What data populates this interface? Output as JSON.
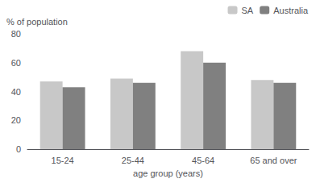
{
  "chart_data": {
    "type": "bar",
    "categories": [
      "15-24",
      "25-44",
      "45-64",
      "65 and over"
    ],
    "series": [
      {
        "name": "SA",
        "color": "#c8c8c8",
        "values": [
          47,
          49,
          68,
          48
        ]
      },
      {
        "name": "Australia",
        "color": "#808080",
        "values": [
          43,
          46,
          60,
          46
        ]
      }
    ],
    "x_label": "age group (years)",
    "y_label": "% of population",
    "ylim": [
      0,
      80
    ],
    "yticks": [
      0,
      20,
      40,
      60,
      80
    ],
    "grid": false,
    "legend": "upper right"
  }
}
